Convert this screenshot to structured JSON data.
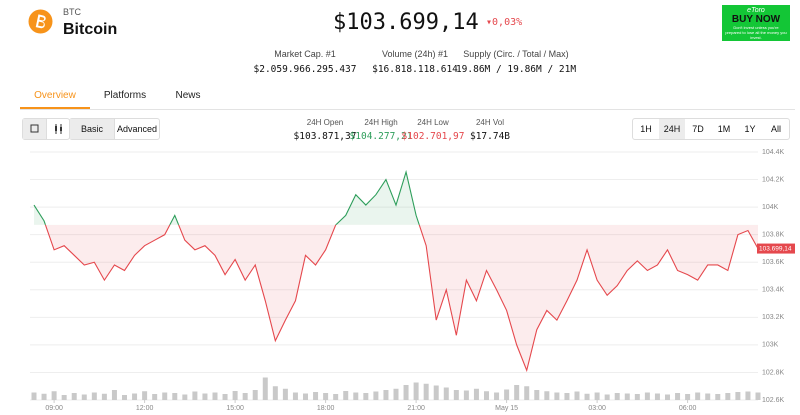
{
  "header": {
    "symbol": "BTC",
    "name": "Bitcoin",
    "price": "$103.699,14",
    "change": "0,03%"
  },
  "ad": {
    "brand": "eToro",
    "cta": "BUY NOW",
    "disclaimer": "Don't invest unless you're prepared to lose all the money you invest."
  },
  "stats": [
    {
      "label": "Market Cap. #1",
      "value": "$2.059.966.295.437"
    },
    {
      "label": "Volume (24h) #1",
      "value": "$16.818.118.614"
    },
    {
      "label": "Supply (Circ. / Total / Max)",
      "value": "19.86M / 19.86M / 21M"
    }
  ],
  "tabs": {
    "items": [
      "Overview",
      "Platforms",
      "News"
    ],
    "active_index": 0
  },
  "modes": {
    "items": [
      "Basic",
      "Advanced"
    ],
    "active_index": 0
  },
  "stats24h": [
    {
      "label": "24H Open",
      "value": "$103.871,37",
      "tone": "neutral"
    },
    {
      "label": "24H High",
      "value": "$104.277,21",
      "tone": "up"
    },
    {
      "label": "24H Low",
      "value": "$102.701,97",
      "tone": "down"
    },
    {
      "label": "24H Vol",
      "value": "$17.74B",
      "tone": "neutral"
    }
  ],
  "timeframes": {
    "items": [
      "1H",
      "24H",
      "7D",
      "1M",
      "1Y",
      "All"
    ],
    "active_index": 1
  },
  "chart_data": {
    "type": "line",
    "baseline": 103871.37,
    "up_color": "#2e9e5b",
    "down_color": "#e5484d",
    "series": [
      {
        "name": "Price",
        "values": [
          104015,
          103900,
          103690,
          103720,
          103650,
          103580,
          103600,
          103470,
          103580,
          103540,
          103650,
          103720,
          103760,
          103800,
          103940,
          103760,
          103690,
          103720,
          103650,
          103510,
          103620,
          103470,
          103580,
          103320,
          103030,
          103180,
          103320,
          103650,
          103580,
          103690,
          103870,
          103940,
          104090,
          104015,
          104090,
          104200,
          104015,
          104255,
          103940,
          103720,
          103180,
          103400,
          103070,
          103470,
          103320,
          103540,
          103400,
          103250,
          103000,
          102815,
          103110,
          103250,
          103180,
          103320,
          103470,
          103690,
          103470,
          103360,
          103430,
          103540,
          103610,
          103540,
          103580,
          103690,
          103540,
          103510,
          103470,
          103580,
          103580,
          103540,
          103800,
          103830,
          103699.14
        ]
      }
    ],
    "volume": {
      "color": "#c9c9c9",
      "vlim": [
        0,
        100
      ],
      "values": [
        30,
        25,
        35,
        20,
        28,
        22,
        30,
        25,
        40,
        20,
        26,
        35,
        24,
        30,
        28,
        22,
        34,
        26,
        30,
        24,
        36,
        28,
        40,
        90,
        55,
        45,
        30,
        26,
        32,
        28,
        24,
        36,
        30,
        28,
        34,
        40,
        45,
        60,
        70,
        65,
        58,
        50,
        40,
        38,
        45,
        35,
        30,
        42,
        60,
        55,
        40,
        35,
        30,
        28,
        34,
        25,
        30,
        22,
        28,
        26,
        24,
        30,
        26,
        22,
        28,
        24,
        30,
        26,
        24,
        28,
        32,
        34,
        30
      ]
    },
    "price_tag": {
      "value": 103699.14,
      "label": "103.699,14"
    },
    "xlim": [
      0,
      72
    ],
    "xticks": [
      {
        "value": 2,
        "label": "09:00"
      },
      {
        "value": 11,
        "label": "12:00"
      },
      {
        "value": 20,
        "label": "15:00"
      },
      {
        "value": 29,
        "label": "18:00"
      },
      {
        "value": 38,
        "label": "21:00"
      },
      {
        "value": 47,
        "label": "May 15"
      },
      {
        "value": 56,
        "label": "03:00"
      },
      {
        "value": 65,
        "label": "06:00"
      }
    ],
    "ylim": [
      102600,
      104400
    ],
    "yticks": [
      {
        "value": 102600,
        "label": "102.6K"
      },
      {
        "value": 102800,
        "label": "102.8K"
      },
      {
        "value": 103000,
        "label": "103K"
      },
      {
        "value": 103200,
        "label": "103.2K"
      },
      {
        "value": 103400,
        "label": "103.4K"
      },
      {
        "value": 103600,
        "label": "103.6K"
      },
      {
        "value": 103800,
        "label": "103.8K"
      },
      {
        "value": 104000,
        "label": "104K"
      },
      {
        "value": 104200,
        "label": "104.2K"
      },
      {
        "value": 104400,
        "label": "104.4K"
      }
    ],
    "grid": true
  }
}
